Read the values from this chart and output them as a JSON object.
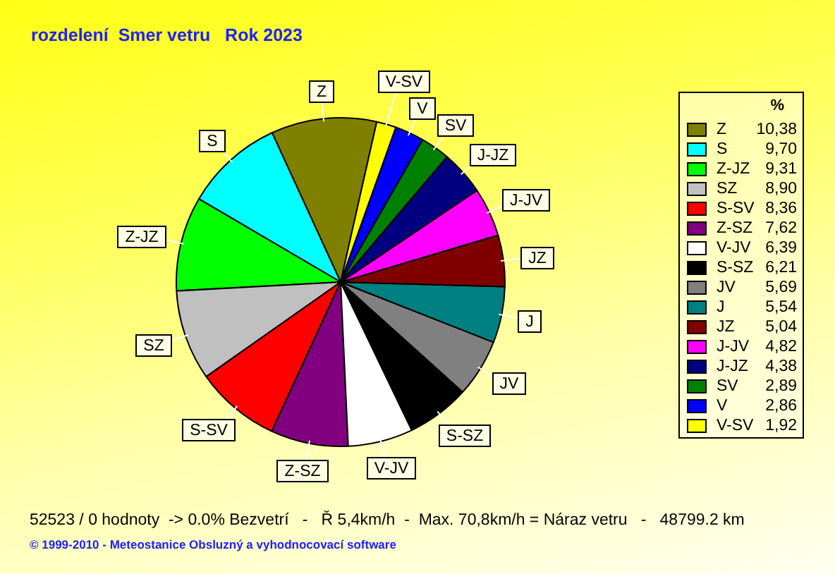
{
  "chart_data": {
    "type": "pie",
    "title": "rozdelení  Smer vetru   Rok 2023",
    "categories": [
      "Z",
      "S",
      "Z-JZ",
      "SZ",
      "S-SV",
      "Z-SZ",
      "V-JV",
      "S-SZ",
      "JV",
      "J",
      "JZ",
      "J-JV",
      "J-JZ",
      "SV",
      "V",
      "V-SV"
    ],
    "values": [
      10.38,
      9.7,
      9.31,
      8.9,
      8.36,
      7.62,
      6.39,
      6.21,
      5.69,
      5.54,
      5.04,
      4.82,
      4.38,
      2.89,
      2.86,
      1.92
    ],
    "colors": [
      "#808000",
      "#00ffff",
      "#00ff00",
      "#c0c0c0",
      "#ff0000",
      "#800080",
      "#ffffff",
      "#000000",
      "#808080",
      "#008080",
      "#800000",
      "#ff00ff",
      "#000080",
      "#008000",
      "#0000ff",
      "#ffff00"
    ],
    "value_labels": [
      "10,38",
      "9,70",
      "9,31",
      "8,90",
      "8,36",
      "7,62",
      "6,39",
      "6,21",
      "5,69",
      "5,54",
      "5,04",
      "4,82",
      "4,38",
      "2,89",
      "2,86",
      "1,92"
    ],
    "legend": "right",
    "legend_title": "%",
    "annotations": [
      "52523 / 0 hodnoty  -> 0.0% Bezvetrí   -   Ř 5,4km/h  -  Max. 70,8km/h = Náraz vetru   -   48799.2 km",
      "© 1999-2010 - Meteostanice Obsluzný a vyhodnocovací software"
    ]
  }
}
